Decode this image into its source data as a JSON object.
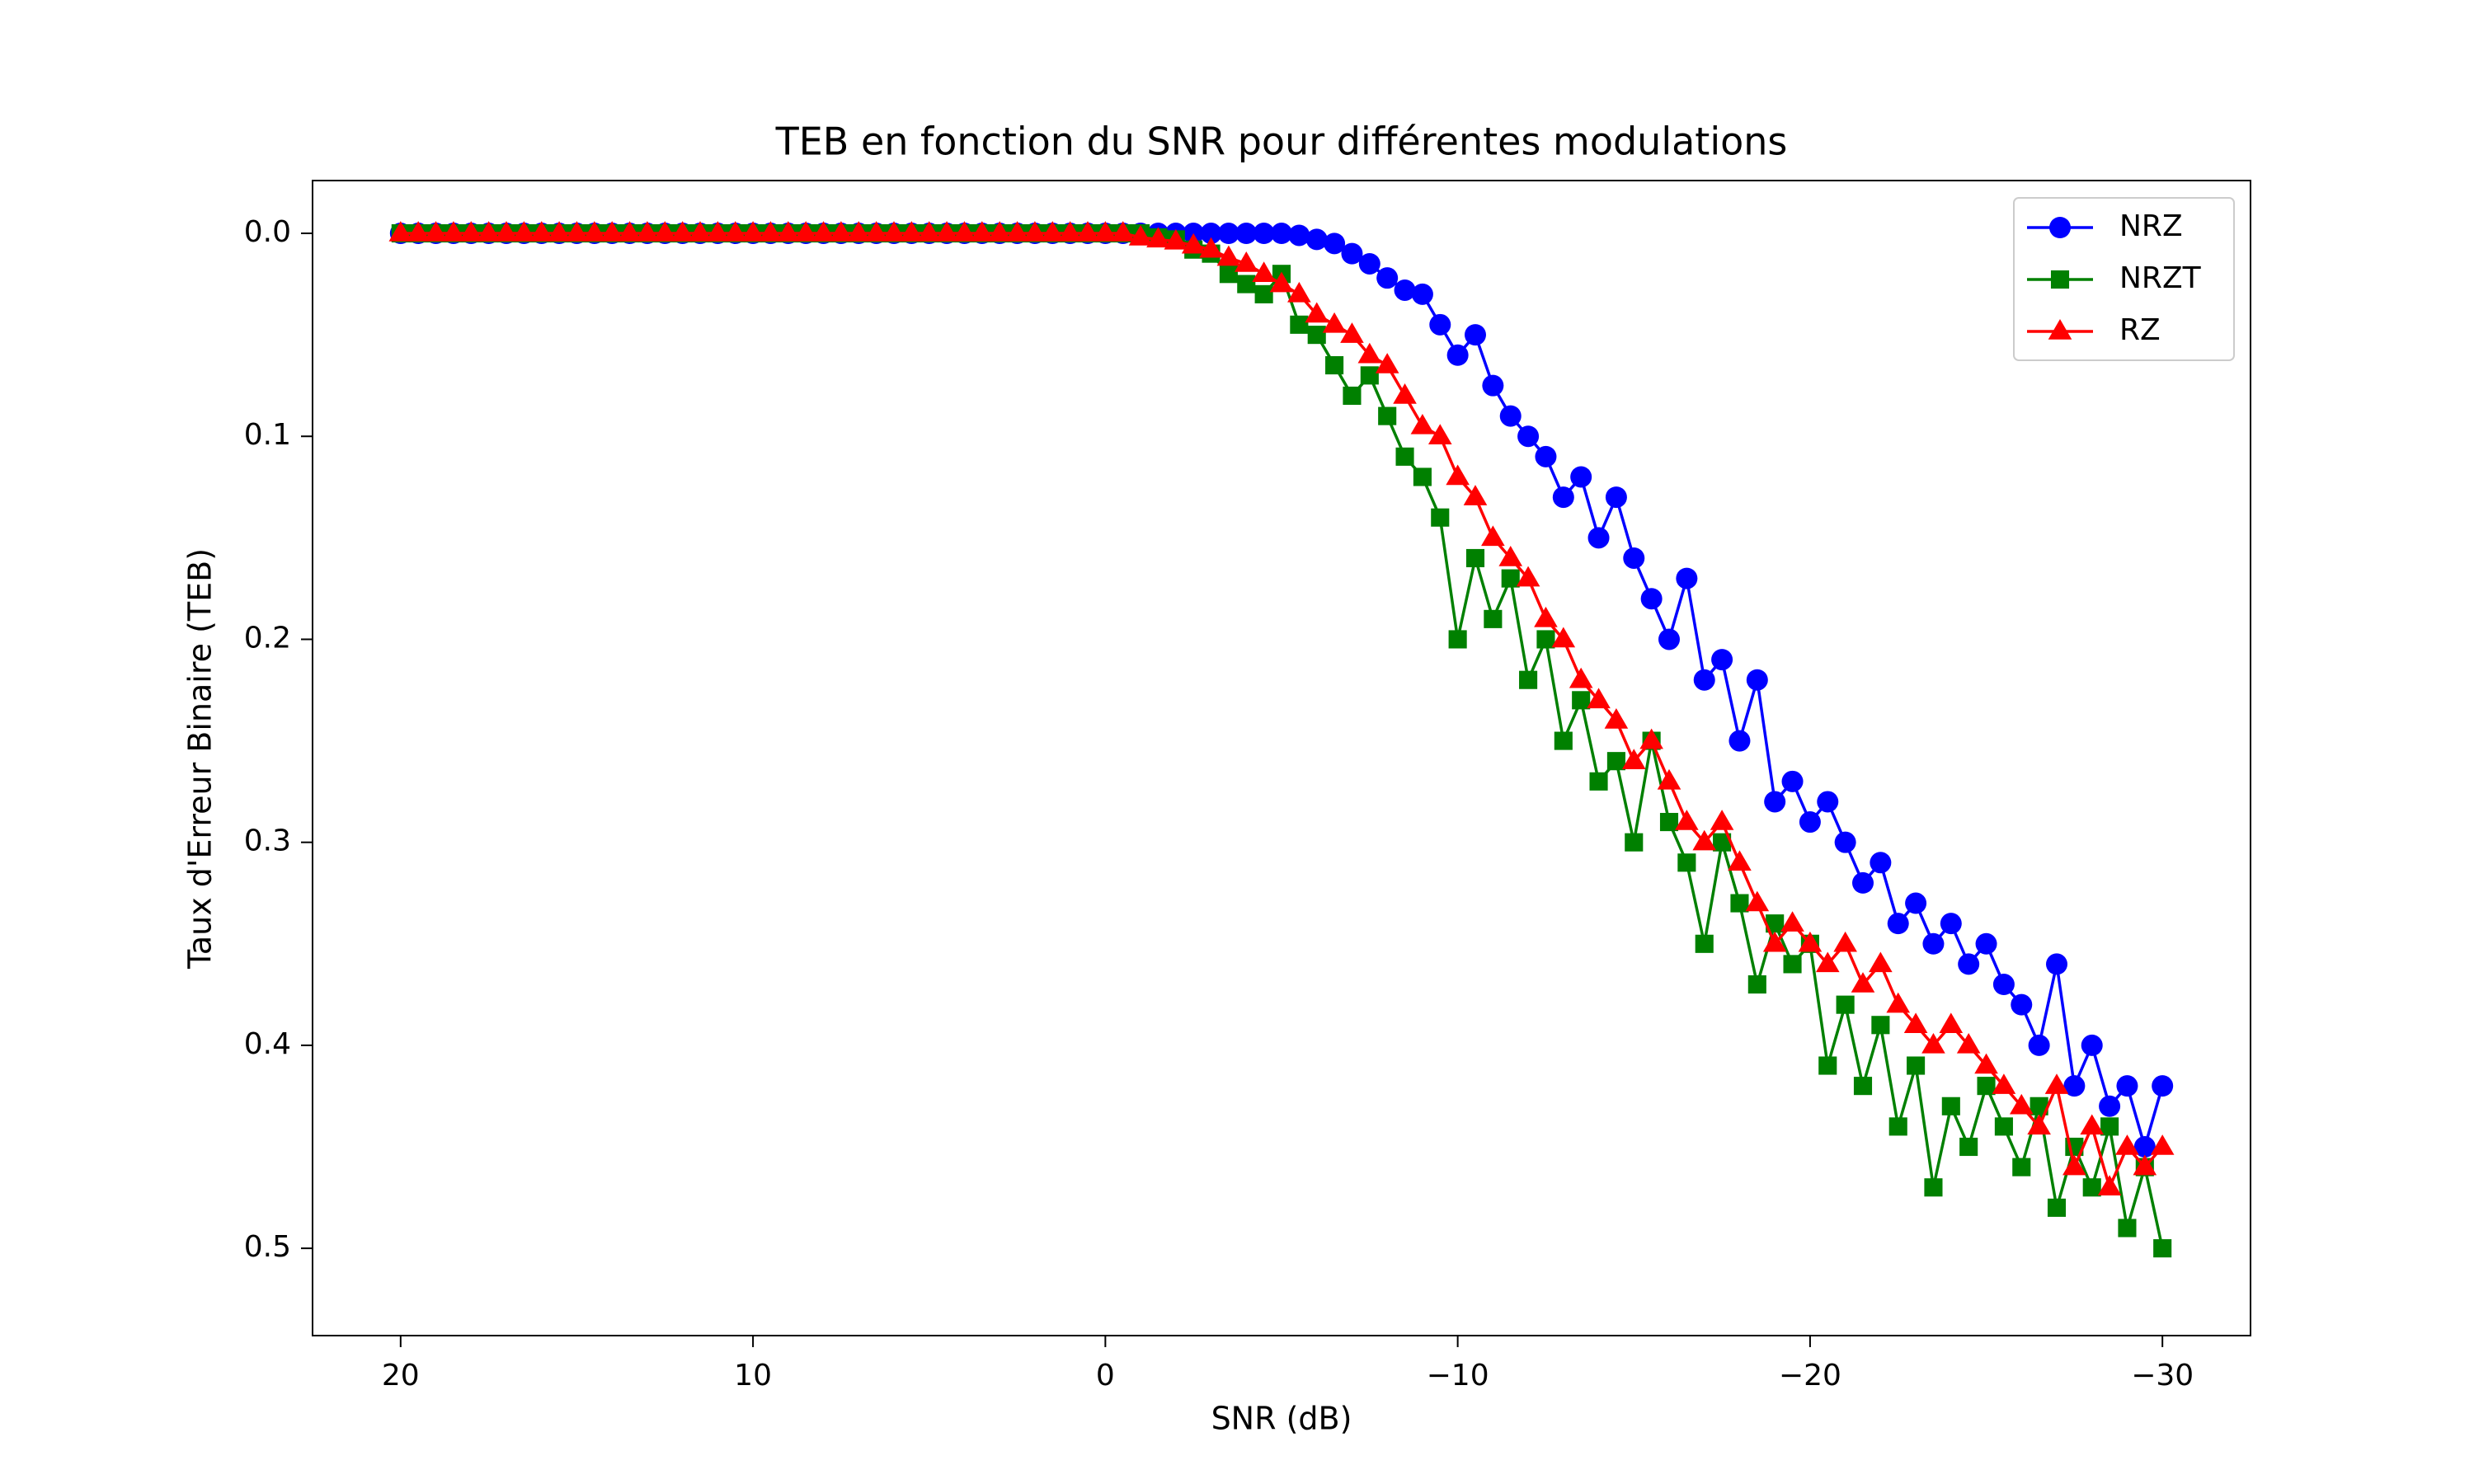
{
  "chart_data": {
    "type": "line",
    "title": "TEB en fonction du SNR pour différentes modulations",
    "xlabel": "SNR (dB)",
    "ylabel": "Taux d'Erreur Binaire (TEB)",
    "x": [
      20,
      19.5,
      19,
      18.5,
      18,
      17.5,
      17,
      16.5,
      16,
      15.5,
      15,
      14.5,
      14,
      13.5,
      13,
      12.5,
      12,
      11.5,
      11,
      10.5,
      10,
      9.5,
      9,
      8.5,
      8,
      7.5,
      7,
      6.5,
      6,
      5.5,
      5,
      4.5,
      4,
      3.5,
      3,
      2.5,
      2,
      1.5,
      1,
      0.5,
      0,
      -0.5,
      -1,
      -1.5,
      -2,
      -2.5,
      -3,
      -3.5,
      -4,
      -4.5,
      -5,
      -5.5,
      -6,
      -6.5,
      -7,
      -7.5,
      -8,
      -8.5,
      -9,
      -9.5,
      -10,
      -10.5,
      -11,
      -11.5,
      -12,
      -12.5,
      -13,
      -13.5,
      -14,
      -14.5,
      -15,
      -15.5,
      -16,
      -16.5,
      -17,
      -17.5,
      -18,
      -18.5,
      -19,
      -19.5,
      -20,
      -20.5,
      -21,
      -21.5,
      -22,
      -22.5,
      -23,
      -23.5,
      -24,
      -24.5,
      -25,
      -25.5,
      -26,
      -26.5,
      -27,
      -27.5,
      -28,
      -28.5,
      -29,
      -29.5,
      -30
    ],
    "series": [
      {
        "name": "NRZ",
        "color": "#0000ff",
        "marker": "circle",
        "values": [
          0,
          0,
          0,
          0,
          0,
          0,
          0,
          0,
          0,
          0,
          0,
          0,
          0,
          0,
          0,
          0,
          0,
          0,
          0,
          0,
          0,
          0,
          0,
          0,
          0,
          0,
          0,
          0,
          0,
          0,
          0,
          0,
          0,
          0,
          0,
          0,
          0,
          0,
          0,
          0,
          0,
          0,
          0,
          0,
          0,
          0,
          0,
          0,
          0,
          0,
          0,
          0.001,
          0.003,
          0.005,
          0.01,
          0.015,
          0.022,
          0.028,
          0.03,
          0.045,
          0.06,
          0.05,
          0.075,
          0.09,
          0.1,
          0.11,
          0.13,
          0.12,
          0.15,
          0.13,
          0.16,
          0.18,
          0.2,
          0.17,
          0.22,
          0.21,
          0.25,
          0.22,
          0.28,
          0.27,
          0.29,
          0.28,
          0.3,
          0.32,
          0.31,
          0.34,
          0.33,
          0.35,
          0.34,
          0.36,
          0.35,
          0.37,
          0.38,
          0.4,
          0.36,
          0.42,
          0.4,
          0.43,
          0.42,
          0.45,
          0.42
        ]
      },
      {
        "name": "NRZT",
        "color": "#008000",
        "marker": "square",
        "values": [
          0,
          0,
          0,
          0,
          0,
          0,
          0,
          0,
          0,
          0,
          0,
          0,
          0,
          0,
          0,
          0,
          0,
          0,
          0,
          0,
          0,
          0,
          0,
          0,
          0,
          0,
          0,
          0,
          0,
          0,
          0,
          0,
          0,
          0,
          0,
          0,
          0,
          0,
          0,
          0,
          0,
          0,
          0,
          0.002,
          0.003,
          0.008,
          0.01,
          0.02,
          0.025,
          0.03,
          0.02,
          0.045,
          0.05,
          0.065,
          0.08,
          0.07,
          0.09,
          0.11,
          0.12,
          0.14,
          0.2,
          0.16,
          0.19,
          0.17,
          0.22,
          0.2,
          0.25,
          0.23,
          0.27,
          0.26,
          0.3,
          0.25,
          0.29,
          0.31,
          0.35,
          0.3,
          0.33,
          0.37,
          0.34,
          0.36,
          0.35,
          0.41,
          0.38,
          0.42,
          0.39,
          0.44,
          0.41,
          0.47,
          0.43,
          0.45,
          0.42,
          0.44,
          0.46,
          0.43,
          0.48,
          0.45,
          0.47,
          0.44,
          0.49,
          0.46,
          0.5
        ]
      },
      {
        "name": "RZ",
        "color": "#ff0000",
        "marker": "triangle",
        "values": [
          0,
          0,
          0,
          0,
          0,
          0,
          0,
          0,
          0,
          0,
          0,
          0,
          0,
          0,
          0,
          0,
          0,
          0,
          0,
          0,
          0,
          0,
          0,
          0,
          0,
          0,
          0,
          0,
          0,
          0,
          0,
          0,
          0,
          0,
          0,
          0,
          0,
          0,
          0,
          0,
          0,
          0,
          0.002,
          0.003,
          0.004,
          0.006,
          0.008,
          0.012,
          0.015,
          0.02,
          0.025,
          0.03,
          0.04,
          0.045,
          0.05,
          0.06,
          0.065,
          0.08,
          0.095,
          0.1,
          0.12,
          0.13,
          0.15,
          0.16,
          0.17,
          0.19,
          0.2,
          0.22,
          0.23,
          0.24,
          0.26,
          0.25,
          0.27,
          0.29,
          0.3,
          0.29,
          0.31,
          0.33,
          0.35,
          0.34,
          0.35,
          0.36,
          0.35,
          0.37,
          0.36,
          0.38,
          0.39,
          0.4,
          0.39,
          0.4,
          0.41,
          0.42,
          0.43,
          0.44,
          0.42,
          0.46,
          0.44,
          0.47,
          0.45,
          0.46,
          0.45
        ]
      }
    ],
    "xlim": [
      22.5,
      -32.5
    ],
    "ylim": [
      0.543,
      -0.026
    ],
    "xticks": [
      20,
      10,
      0,
      {
        "value": -10,
        "label": "−10"
      },
      {
        "value": -20,
        "label": "−20"
      },
      {
        "value": -30,
        "label": "−30"
      }
    ],
    "yticks": [
      {
        "value": 0,
        "label": "0.0"
      },
      0.1,
      0.2,
      0.3,
      0.4,
      0.5
    ],
    "legend": "upper right",
    "grid": false
  }
}
